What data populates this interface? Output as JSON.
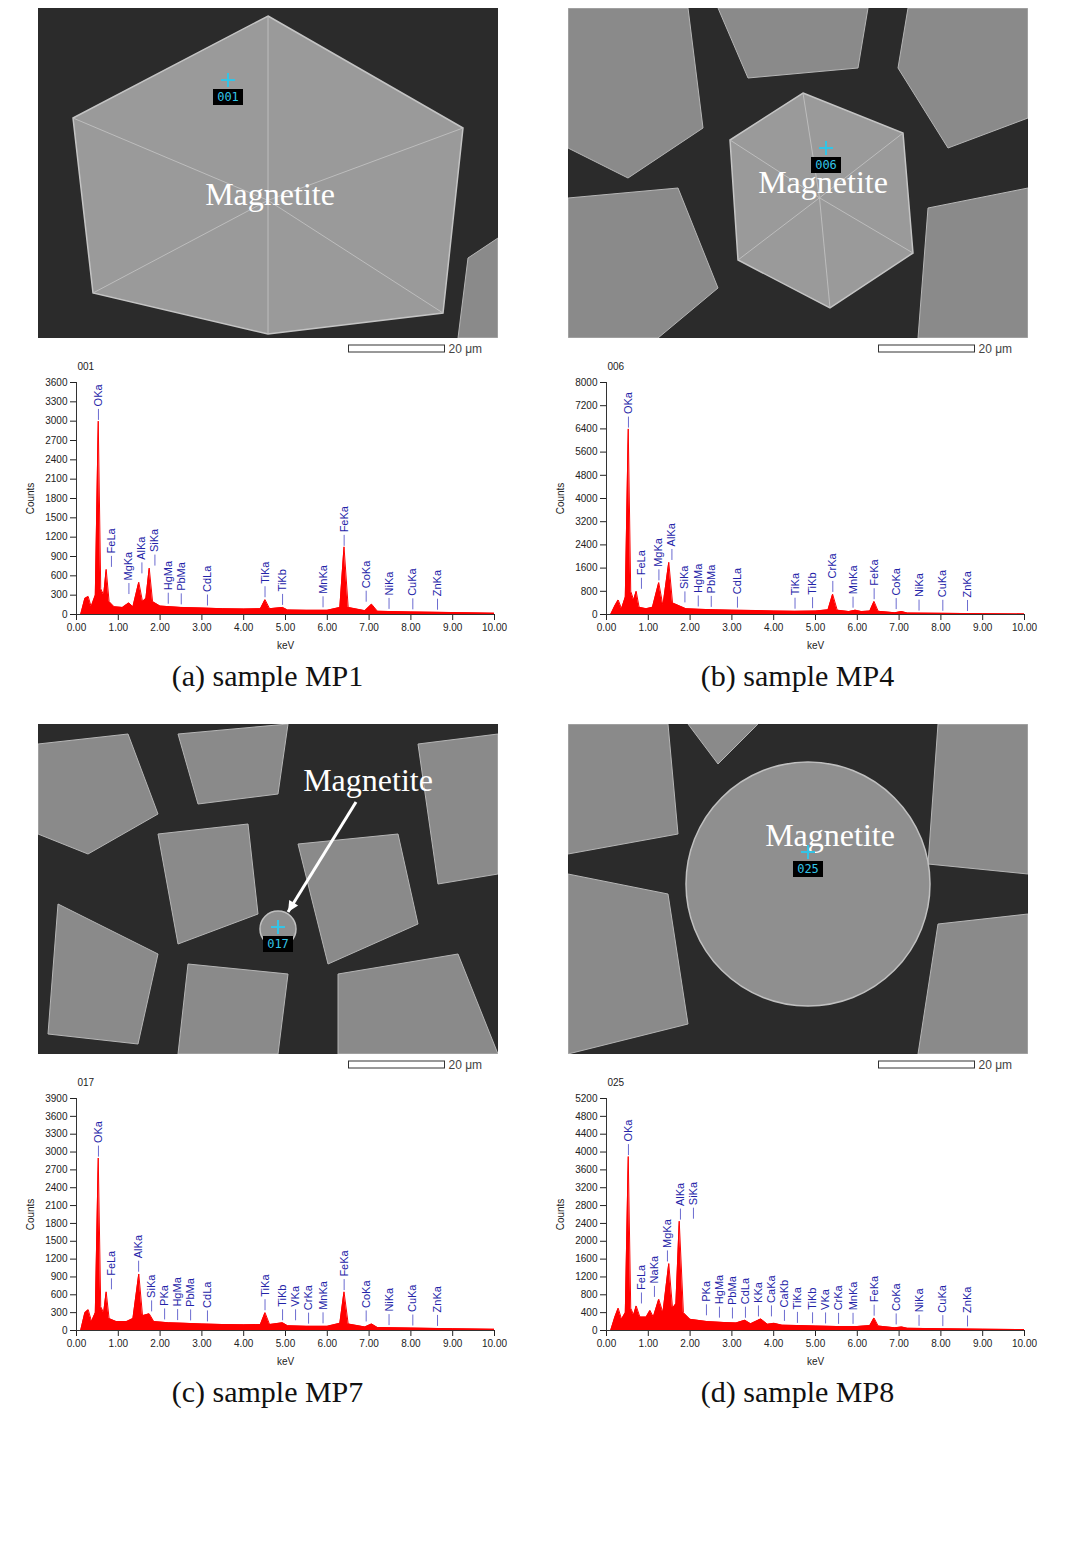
{
  "chart_data": [
    {
      "type": "area",
      "title": "001",
      "xlabel": "keV",
      "ylabel": "Counts",
      "color": "#ff0000",
      "xlim": [
        0,
        10
      ],
      "xticks": [
        {
          "value": 0,
          "label": "0.00"
        },
        {
          "value": 1,
          "label": "1.00"
        },
        {
          "value": 2,
          "label": "2.00"
        },
        {
          "value": 3,
          "label": "3.00"
        },
        {
          "value": 4,
          "label": "4.00"
        },
        {
          "value": 5,
          "label": "5.00"
        },
        {
          "value": 6,
          "label": "6.00"
        },
        {
          "value": 7,
          "label": "7.00"
        },
        {
          "value": 8,
          "label": "8.00"
        },
        {
          "value": 9,
          "label": "9.00"
        },
        {
          "value": 10,
          "label": "10.00"
        }
      ],
      "ylim": [
        0,
        3600
      ],
      "yticks": [
        0,
        300,
        600,
        900,
        1200,
        1500,
        1800,
        2100,
        2400,
        2700,
        3000,
        3300,
        3600
      ],
      "x": [
        0.1,
        0.2,
        0.28,
        0.35,
        0.45,
        0.52,
        0.58,
        0.65,
        0.71,
        0.78,
        0.9,
        1.1,
        1.25,
        1.35,
        1.49,
        1.58,
        1.66,
        1.74,
        1.82,
        2.0,
        2.5,
        3.0,
        3.5,
        4.0,
        4.4,
        4.51,
        4.62,
        4.93,
        5.05,
        5.5,
        6.0,
        6.3,
        6.4,
        6.5,
        6.9,
        7.06,
        7.2,
        8.0,
        9.0,
        10.0
      ],
      "values": [
        0,
        250,
        280,
        120,
        300,
        3000,
        400,
        300,
        700,
        200,
        120,
        110,
        180,
        120,
        500,
        200,
        250,
        720,
        200,
        130,
        110,
        100,
        90,
        85,
        90,
        230,
        90,
        110,
        70,
        65,
        65,
        110,
        1050,
        110,
        60,
        160,
        50,
        40,
        30,
        20
      ],
      "peaks": [
        {
          "label": "OKa",
          "x": 0.525
        },
        {
          "label": "FeLa",
          "x": 0.705
        },
        {
          "label": "MgKa",
          "x": 1.254
        },
        {
          "label": "AlKa",
          "x": 1.486
        },
        {
          "label": "SiKa",
          "x": 1.74
        },
        {
          "label": "HgMa",
          "x": 2.195
        },
        {
          "label": "PbMa",
          "x": 2.342
        },
        {
          "label": "CdLa",
          "x": 3.133
        },
        {
          "label": "TiKa",
          "x": 4.51
        },
        {
          "label": "TiKb",
          "x": 4.93
        },
        {
          "label": "MnKa",
          "x": 5.898
        },
        {
          "label": "FeKa",
          "x": 6.403
        },
        {
          "label": "CoKa",
          "x": 6.93
        },
        {
          "label": "NiKa",
          "x": 7.477
        },
        {
          "label": "CuKa",
          "x": 8.046
        },
        {
          "label": "ZnKa",
          "x": 8.637
        }
      ]
    },
    {
      "type": "area",
      "title": "006",
      "xlabel": "keV",
      "ylabel": "Counts",
      "color": "#ff0000",
      "xlim": [
        0,
        10
      ],
      "xticks": [
        {
          "value": 0,
          "label": "0.00"
        },
        {
          "value": 1,
          "label": "1.00"
        },
        {
          "value": 2,
          "label": "2.00"
        },
        {
          "value": 3,
          "label": "3.00"
        },
        {
          "value": 4,
          "label": "4.00"
        },
        {
          "value": 5,
          "label": "5.00"
        },
        {
          "value": 6,
          "label": "6.00"
        },
        {
          "value": 7,
          "label": "7.00"
        },
        {
          "value": 8,
          "label": "8.00"
        },
        {
          "value": 9,
          "label": "9.00"
        },
        {
          "value": 10,
          "label": "10.00"
        }
      ],
      "ylim": [
        0,
        8000
      ],
      "yticks": [
        0,
        800,
        1600,
        2400,
        3200,
        4000,
        4800,
        5600,
        6400,
        7200,
        8000
      ],
      "x": [
        0.1,
        0.2,
        0.28,
        0.36,
        0.45,
        0.52,
        0.58,
        0.65,
        0.71,
        0.78,
        0.95,
        1.1,
        1.25,
        1.35,
        1.49,
        1.58,
        1.74,
        1.9,
        2.2,
        2.6,
        3.0,
        3.5,
        4.0,
        4.5,
        5.0,
        5.3,
        5.41,
        5.52,
        5.8,
        5.95,
        6.1,
        6.3,
        6.4,
        6.5,
        6.9,
        7.06,
        7.2,
        8.0,
        9.0,
        10.0
      ],
      "values": [
        0,
        300,
        500,
        200,
        600,
        6400,
        800,
        500,
        800,
        250,
        200,
        250,
        1100,
        300,
        1800,
        400,
        300,
        200,
        180,
        160,
        150,
        140,
        120,
        110,
        120,
        160,
        700,
        150,
        100,
        150,
        100,
        120,
        450,
        110,
        60,
        100,
        50,
        40,
        30,
        20
      ],
      "peaks": [
        {
          "label": "OKa",
          "x": 0.525
        },
        {
          "label": "FeLa",
          "x": 0.705
        },
        {
          "label": "MgKa",
          "x": 1.254
        },
        {
          "label": "AlKa",
          "x": 1.486
        },
        {
          "label": "SiKa",
          "x": 1.74
        },
        {
          "label": "HgMa",
          "x": 2.195
        },
        {
          "label": "PbMa",
          "x": 2.342
        },
        {
          "label": "CdLa",
          "x": 3.133
        },
        {
          "label": "TiKa",
          "x": 4.51
        },
        {
          "label": "TiKb",
          "x": 4.93
        },
        {
          "label": "CrKa",
          "x": 5.414
        },
        {
          "label": "MnKa",
          "x": 5.898
        },
        {
          "label": "FeKa",
          "x": 6.403
        },
        {
          "label": "CoKa",
          "x": 6.93
        },
        {
          "label": "NiKa",
          "x": 7.477
        },
        {
          "label": "CuKa",
          "x": 8.046
        },
        {
          "label": "ZnKa",
          "x": 8.637
        }
      ]
    },
    {
      "type": "area",
      "title": "017",
      "xlabel": "keV",
      "ylabel": "Counts",
      "color": "#ff0000",
      "xlim": [
        0,
        10
      ],
      "xticks": [
        {
          "value": 0,
          "label": "0.00"
        },
        {
          "value": 1,
          "label": "1.00"
        },
        {
          "value": 2,
          "label": "2.00"
        },
        {
          "value": 3,
          "label": "3.00"
        },
        {
          "value": 4,
          "label": "4.00"
        },
        {
          "value": 5,
          "label": "5.00"
        },
        {
          "value": 6,
          "label": "6.00"
        },
        {
          "value": 7,
          "label": "7.00"
        },
        {
          "value": 8,
          "label": "8.00"
        },
        {
          "value": 9,
          "label": "9.00"
        },
        {
          "value": 10,
          "label": "10.00"
        }
      ],
      "ylim": [
        0,
        3900
      ],
      "yticks": [
        0,
        300,
        600,
        900,
        1200,
        1500,
        1800,
        2100,
        2400,
        2700,
        3000,
        3300,
        3600,
        3900
      ],
      "x": [
        0.1,
        0.2,
        0.28,
        0.36,
        0.45,
        0.52,
        0.58,
        0.65,
        0.71,
        0.78,
        0.95,
        1.2,
        1.35,
        1.49,
        1.58,
        1.74,
        1.85,
        2.2,
        2.6,
        3.0,
        3.5,
        4.0,
        4.4,
        4.51,
        4.62,
        4.93,
        5.05,
        5.5,
        6.0,
        6.3,
        6.4,
        6.5,
        6.9,
        7.06,
        7.2,
        8.0,
        9.0,
        10.0
      ],
      "values": [
        0,
        300,
        350,
        150,
        300,
        2900,
        400,
        300,
        650,
        200,
        150,
        150,
        200,
        950,
        250,
        280,
        150,
        130,
        120,
        110,
        100,
        95,
        100,
        300,
        100,
        130,
        80,
        70,
        70,
        120,
        650,
        110,
        60,
        110,
        50,
        40,
        30,
        20
      ],
      "peaks": [
        {
          "label": "OKa",
          "x": 0.525
        },
        {
          "label": "FeLa",
          "x": 0.705
        },
        {
          "label": "AlKa",
          "x": 1.486
        },
        {
          "label": "SiKa",
          "x": 1.74
        },
        {
          "label": "PKa",
          "x": 2.013
        },
        {
          "label": "HgMa",
          "x": 2.195
        },
        {
          "label": "PbMa",
          "x": 2.342
        },
        {
          "label": "CdLa",
          "x": 3.133
        },
        {
          "label": "TiKa",
          "x": 4.51
        },
        {
          "label": "TiKb",
          "x": 4.93
        },
        {
          "label": "VKa",
          "x": 4.952
        },
        {
          "label": "CrKa",
          "x": 5.414
        },
        {
          "label": "MnKa",
          "x": 5.898
        },
        {
          "label": "FeKa",
          "x": 6.403
        },
        {
          "label": "CoKa",
          "x": 6.93
        },
        {
          "label": "NiKa",
          "x": 7.477
        },
        {
          "label": "CuKa",
          "x": 8.046
        },
        {
          "label": "ZnKa",
          "x": 8.637
        }
      ]
    },
    {
      "type": "area",
      "title": "025",
      "xlabel": "keV",
      "ylabel": "Counts",
      "color": "#ff0000",
      "xlim": [
        0,
        10
      ],
      "xticks": [
        {
          "value": 0,
          "label": "0.00"
        },
        {
          "value": 1,
          "label": "1.00"
        },
        {
          "value": 2,
          "label": "2.00"
        },
        {
          "value": 3,
          "label": "3.00"
        },
        {
          "value": 4,
          "label": "4.00"
        },
        {
          "value": 5,
          "label": "5.00"
        },
        {
          "value": 6,
          "label": "6.00"
        },
        {
          "value": 7,
          "label": "7.00"
        },
        {
          "value": 8,
          "label": "8.00"
        },
        {
          "value": 9,
          "label": "9.00"
        },
        {
          "value": 10,
          "label": "10.00"
        }
      ],
      "ylim": [
        0,
        5200
      ],
      "yticks": [
        0,
        400,
        800,
        1200,
        1600,
        2000,
        2400,
        2800,
        3200,
        3600,
        4000,
        4400,
        4800,
        5200
      ],
      "x": [
        0.1,
        0.2,
        0.28,
        0.36,
        0.45,
        0.52,
        0.58,
        0.65,
        0.71,
        0.8,
        0.95,
        1.04,
        1.12,
        1.25,
        1.35,
        1.49,
        1.58,
        1.66,
        1.74,
        1.84,
        2.0,
        2.4,
        2.8,
        3.1,
        3.31,
        3.45,
        3.69,
        3.85,
        4.01,
        4.2,
        4.6,
        5.0,
        5.5,
        6.0,
        6.3,
        6.4,
        6.5,
        6.9,
        7.06,
        7.2,
        8.0,
        9.0,
        10.0
      ],
      "values": [
        0,
        300,
        500,
        250,
        400,
        3900,
        500,
        350,
        550,
        300,
        300,
        450,
        300,
        700,
        400,
        1500,
        500,
        600,
        2450,
        400,
        250,
        200,
        180,
        170,
        230,
        150,
        260,
        140,
        160,
        120,
        110,
        100,
        90,
        90,
        110,
        280,
        100,
        60,
        80,
        50,
        40,
        30,
        20
      ],
      "peaks": [
        {
          "label": "OKa",
          "x": 0.525
        },
        {
          "label": "FeLa",
          "x": 0.705
        },
        {
          "label": "NaKa",
          "x": 1.041
        },
        {
          "label": "MgKa",
          "x": 1.254
        },
        {
          "label": "AlKa",
          "x": 1.486
        },
        {
          "label": "SiKa",
          "x": 1.74
        },
        {
          "label": "PKa",
          "x": 2.013
        },
        {
          "label": "HgMa",
          "x": 2.195
        },
        {
          "label": "PbMa",
          "x": 2.342
        },
        {
          "label": "CdLa",
          "x": 3.133
        },
        {
          "label": "KKa",
          "x": 3.313
        },
        {
          "label": "CaKa",
          "x": 3.69
        },
        {
          "label": "CaKb",
          "x": 4.012
        },
        {
          "label": "TiKa",
          "x": 4.51
        },
        {
          "label": "TiKb",
          "x": 4.93
        },
        {
          "label": "VKa",
          "x": 4.952
        },
        {
          "label": "CrKa",
          "x": 5.414
        },
        {
          "label": "MnKa",
          "x": 5.898
        },
        {
          "label": "FeKa",
          "x": 6.403
        },
        {
          "label": "CoKa",
          "x": 6.93
        },
        {
          "label": "NiKa",
          "x": 7.477
        },
        {
          "label": "CuKa",
          "x": 8.046
        },
        {
          "label": "ZnKa",
          "x": 8.637
        }
      ]
    }
  ],
  "panels": [
    {
      "caption": "(a) sample MP1",
      "image": {
        "label": "Magnetite",
        "point": "001",
        "scale_bar": "20 μm"
      }
    },
    {
      "caption": "(b) sample MP4",
      "image": {
        "label": "Magnetite",
        "point": "006",
        "scale_bar": "20 μm"
      }
    },
    {
      "caption": "(c) sample MP7",
      "image": {
        "label": "Magnetite",
        "point": "017",
        "scale_bar": "20 μm"
      }
    },
    {
      "caption": "(d) sample MP8",
      "image": {
        "label": "Magnetite",
        "point": "025",
        "scale_bar": "20 μm"
      }
    }
  ]
}
